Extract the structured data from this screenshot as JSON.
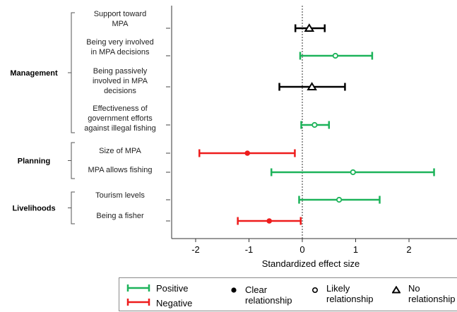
{
  "chart_data": {
    "type": "scatter",
    "xlabel": "Standardized effect size",
    "xlim": [
      -2.45,
      2.9
    ],
    "xticks": [
      -2,
      -1,
      0,
      1,
      2
    ],
    "reference_line_x": 0,
    "groups": [
      {
        "label": "Management"
      },
      {
        "label": "Planning"
      },
      {
        "label": "Livelihoods"
      }
    ],
    "rows": [
      {
        "label": [
          "Support  toward",
          "MPA"
        ],
        "group": "Management",
        "estimate": 0.13,
        "ci": [
          -0.13,
          0.42
        ],
        "direction": "none",
        "relationship": "No relationship"
      },
      {
        "label": [
          "Being  very  involved",
          "in MPA decisions"
        ],
        "group": "Management",
        "estimate": 0.62,
        "ci": [
          -0.04,
          1.31
        ],
        "direction": "Positive",
        "relationship": "Likely relationship"
      },
      {
        "label": [
          "Being   passively",
          "involved   in  MPA",
          "decisions"
        ],
        "group": "Management",
        "estimate": 0.18,
        "ci": [
          -0.43,
          0.8
        ],
        "direction": "none",
        "relationship": "No relationship"
      },
      {
        "label": [
          "Effectiveness    of",
          "government    efforts",
          "against  illegal fishing"
        ],
        "group": "Management",
        "estimate": 0.23,
        "ci": [
          -0.02,
          0.5
        ],
        "direction": "Positive",
        "relationship": "Likely relationship"
      },
      {
        "label": [
          "Size of MPA"
        ],
        "group": "Planning",
        "estimate": -1.03,
        "ci": [
          -1.93,
          -0.14
        ],
        "direction": "Negative",
        "relationship": "Clear relationship"
      },
      {
        "label": [
          "MPA allows fishing"
        ],
        "group": "Planning",
        "estimate": 0.95,
        "ci": [
          -0.58,
          2.47
        ],
        "direction": "Positive",
        "relationship": "Likely relationship"
      },
      {
        "label": [
          "Tourism   levels"
        ],
        "group": "Livelihoods",
        "estimate": 0.69,
        "ci": [
          -0.06,
          1.45
        ],
        "direction": "Positive",
        "relationship": "Likely relationship"
      },
      {
        "label": [
          "Being a fisher"
        ],
        "group": "Livelihoods",
        "estimate": -0.62,
        "ci": [
          -1.21,
          -0.03
        ],
        "direction": "Negative",
        "relationship": "Clear relationship"
      }
    ],
    "colors": {
      "Positive": "#1db35a",
      "Negative": "#ee1c1c",
      "none": "#000000"
    },
    "legend": {
      "direction": [
        {
          "label": "Positive",
          "color": "#1db35a"
        },
        {
          "label": "Negative",
          "color": "#ee1c1c"
        }
      ],
      "relationship": [
        {
          "label": [
            "Clear",
            "relationship"
          ],
          "marker": "filled-circle"
        },
        {
          "label": [
            "Likely",
            "relationship"
          ],
          "marker": "open-circle"
        },
        {
          "label": [
            "No",
            "relationship"
          ],
          "marker": "open-triangle"
        }
      ]
    }
  }
}
